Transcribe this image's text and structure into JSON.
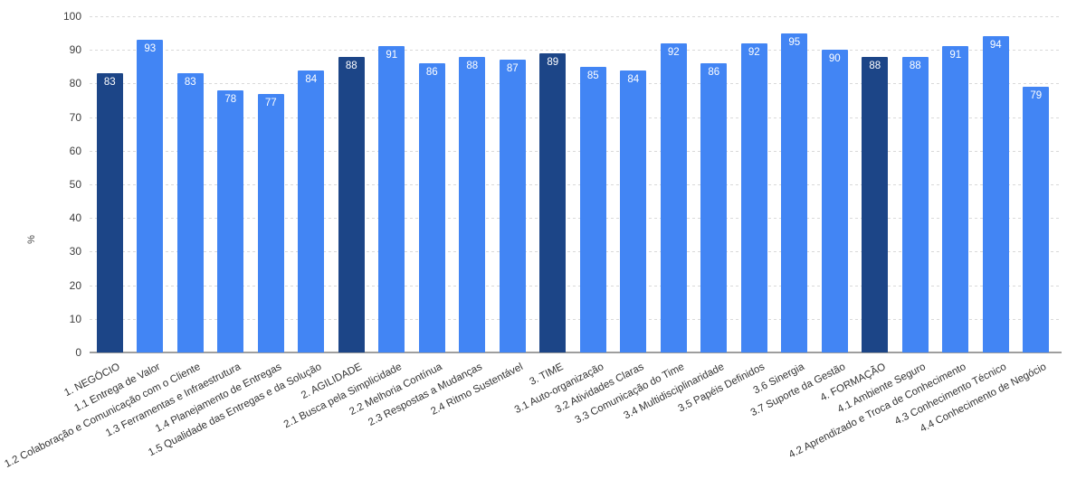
{
  "chart_data": {
    "type": "bar",
    "title": "",
    "xlabel": "",
    "ylabel": "%",
    "ylim": [
      0,
      100
    ],
    "yticks": [
      0,
      10,
      20,
      30,
      40,
      50,
      60,
      70,
      80,
      90,
      100
    ],
    "grid": true,
    "legend": "none",
    "value_labels_position": "inside-top",
    "x_label_rotation_deg": -27,
    "categories": [
      "1. NEGÓCIO",
      "1.1 Entrega de Valor",
      "1.2 Colaboração e Comunicação com o Cliente",
      "1.3 Ferramentas e Infraestrutura",
      "1.4 Planejamento de Entregas",
      "1.5 Qualidade das Entregas e da Solução",
      "2. AGILIDADE",
      "2.1 Busca pela Simplicidade",
      "2.2 Melhoria Contínua",
      "2.3 Respostas a Mudanças",
      "2.4 Ritmo Sustentável",
      "3. TIME",
      "3.1 Auto-organização",
      "3.2 Atividades Claras",
      "3.3 Comunicação do Time",
      "3.4 Multidisciplinaridade",
      "3.5 Papéis Definidos",
      "3.6 Sinergia",
      "3.7 Suporte da Gestão",
      "4. FORMAÇÃO",
      "4.1 Ambiente Seguro",
      "4.2 Aprendizado e Troca de Conhecimento",
      "4.3 Conhecimento Técnico",
      "4.4 Conhecimento de Negócio"
    ],
    "values": [
      83,
      93,
      83,
      78,
      77,
      84,
      88,
      91,
      86,
      88,
      87,
      89,
      85,
      84,
      92,
      86,
      92,
      95,
      90,
      88,
      88,
      91,
      94,
      79
    ],
    "section_indices": [
      0,
      6,
      11,
      19
    ],
    "colors": {
      "bar_light": "#4285f4",
      "bar_dark": "#1c4587",
      "gridline": "#d9d9d9",
      "axis_line": "#9e9e9e",
      "y_tick_label": "#3c3c3c",
      "category_label": "#333333",
      "value_label": "#ffffff",
      "background": "#ffffff"
    }
  }
}
